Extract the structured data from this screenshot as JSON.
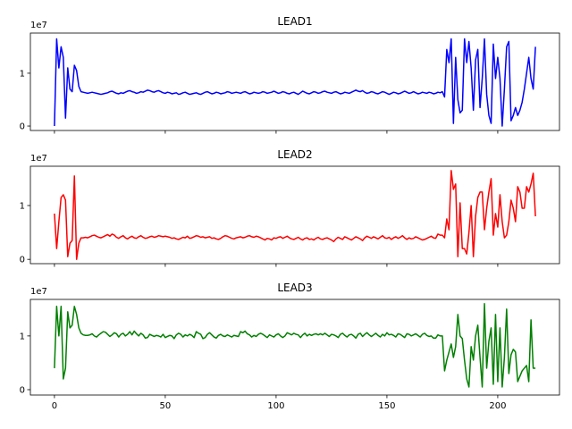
{
  "chart_data": [
    {
      "type": "line",
      "title": "LEAD1",
      "color": "#0000ff",
      "y_offset_label": "1e7",
      "xlim": [
        -10.85,
        227.85
      ],
      "ylim": [
        -0.084,
        1.76
      ],
      "yticks": [
        0,
        1
      ],
      "x": [
        0,
        1,
        2,
        3,
        4,
        5,
        6,
        7,
        8,
        9,
        10,
        11,
        12,
        13,
        14,
        15,
        16,
        17,
        18,
        19,
        20,
        21,
        22,
        23,
        24,
        25,
        26,
        27,
        28,
        29,
        30,
        31,
        32,
        33,
        34,
        35,
        36,
        37,
        38,
        39,
        40,
        41,
        42,
        43,
        44,
        45,
        46,
        47,
        48,
        49,
        50,
        51,
        52,
        53,
        54,
        55,
        56,
        57,
        58,
        59,
        60,
        61,
        62,
        63,
        64,
        65,
        66,
        67,
        68,
        69,
        70,
        71,
        72,
        73,
        74,
        75,
        76,
        77,
        78,
        79,
        80,
        81,
        82,
        83,
        84,
        85,
        86,
        87,
        88,
        89,
        90,
        91,
        92,
        93,
        94,
        95,
        96,
        97,
        98,
        99,
        100,
        101,
        102,
        103,
        104,
        105,
        106,
        107,
        108,
        109,
        110,
        111,
        112,
        113,
        114,
        115,
        116,
        117,
        118,
        119,
        120,
        121,
        122,
        123,
        124,
        125,
        126,
        127,
        128,
        129,
        130,
        131,
        132,
        133,
        134,
        135,
        136,
        137,
        138,
        139,
        140,
        141,
        142,
        143,
        144,
        145,
        146,
        147,
        148,
        149,
        150,
        151,
        152,
        153,
        154,
        155,
        156,
        157,
        158,
        159,
        160,
        161,
        162,
        163,
        164,
        165,
        166,
        167,
        168,
        169,
        170,
        171,
        172,
        173,
        174,
        175,
        176,
        177,
        178,
        179,
        180,
        181,
        182,
        183,
        184,
        185,
        186,
        187,
        188,
        189,
        190,
        191,
        192,
        193,
        194,
        195,
        196,
        197,
        198,
        199,
        200,
        201,
        202,
        203,
        204,
        205,
        206,
        207,
        208,
        209,
        210,
        211,
        212,
        213,
        214,
        215,
        216,
        217
      ],
      "values": [
        0,
        1.65,
        1.1,
        1.5,
        1.3,
        0.15,
        1.1,
        0.7,
        0.65,
        1.15,
        1.05,
        0.75,
        0.65,
        0.64,
        0.63,
        0.62,
        0.63,
        0.64,
        0.63,
        0.62,
        0.61,
        0.6,
        0.61,
        0.62,
        0.63,
        0.65,
        0.66,
        0.64,
        0.62,
        0.61,
        0.63,
        0.62,
        0.64,
        0.66,
        0.67,
        0.65,
        0.64,
        0.62,
        0.63,
        0.65,
        0.64,
        0.66,
        0.68,
        0.67,
        0.65,
        0.64,
        0.66,
        0.67,
        0.65,
        0.63,
        0.62,
        0.64,
        0.63,
        0.61,
        0.62,
        0.63,
        0.6,
        0.61,
        0.63,
        0.64,
        0.62,
        0.6,
        0.61,
        0.62,
        0.63,
        0.61,
        0.6,
        0.62,
        0.64,
        0.65,
        0.63,
        0.61,
        0.62,
        0.64,
        0.63,
        0.61,
        0.62,
        0.63,
        0.65,
        0.64,
        0.62,
        0.63,
        0.64,
        0.63,
        0.62,
        0.64,
        0.65,
        0.63,
        0.61,
        0.62,
        0.64,
        0.63,
        0.62,
        0.63,
        0.65,
        0.64,
        0.62,
        0.63,
        0.64,
        0.66,
        0.64,
        0.62,
        0.63,
        0.65,
        0.64,
        0.62,
        0.61,
        0.63,
        0.64,
        0.62,
        0.6,
        0.63,
        0.66,
        0.64,
        0.62,
        0.61,
        0.63,
        0.65,
        0.64,
        0.62,
        0.63,
        0.65,
        0.66,
        0.64,
        0.63,
        0.62,
        0.64,
        0.65,
        0.63,
        0.61,
        0.62,
        0.64,
        0.63,
        0.62,
        0.64,
        0.66,
        0.68,
        0.66,
        0.65,
        0.67,
        0.64,
        0.62,
        0.63,
        0.65,
        0.64,
        0.62,
        0.61,
        0.63,
        0.65,
        0.64,
        0.62,
        0.6,
        0.62,
        0.64,
        0.63,
        0.61,
        0.62,
        0.64,
        0.66,
        0.64,
        0.62,
        0.63,
        0.65,
        0.63,
        0.61,
        0.62,
        0.64,
        0.63,
        0.62,
        0.64,
        0.63,
        0.61,
        0.62,
        0.64,
        0.63,
        0.65,
        0.55,
        1.45,
        1.2,
        1.65,
        0.05,
        1.3,
        0.5,
        0.25,
        0.3,
        1.65,
        1.2,
        1.6,
        1.1,
        0.3,
        1.25,
        1.45,
        0.35,
        0.9,
        1.65,
        0.6,
        0.2,
        0.05,
        1.55,
        0.9,
        1.3,
        0.9,
        0.0,
        0.7,
        1.5,
        1.6,
        0.1,
        0.2,
        0.35,
        0.2,
        0.3,
        0.45,
        0.7,
        1.0,
        1.3,
        0.9,
        0.7,
        1.5
      ]
    },
    {
      "type": "line",
      "title": "LEAD2",
      "color": "#ff0000",
      "y_offset_label": "1e7",
      "xlim": [
        -10.85,
        227.85
      ],
      "ylim": [
        -0.08,
        1.73
      ],
      "yticks": [
        0,
        1
      ],
      "x": [
        0,
        1,
        2,
        3,
        4,
        5,
        6,
        7,
        8,
        9,
        10,
        11,
        12,
        13,
        14,
        15,
        16,
        17,
        18,
        19,
        20,
        21,
        22,
        23,
        24,
        25,
        26,
        27,
        28,
        29,
        30,
        31,
        32,
        33,
        34,
        35,
        36,
        37,
        38,
        39,
        40,
        41,
        42,
        43,
        44,
        45,
        46,
        47,
        48,
        49,
        50,
        51,
        52,
        53,
        54,
        55,
        56,
        57,
        58,
        59,
        60,
        61,
        62,
        63,
        64,
        65,
        66,
        67,
        68,
        69,
        70,
        71,
        72,
        73,
        74,
        75,
        76,
        77,
        78,
        79,
        80,
        81,
        82,
        83,
        84,
        85,
        86,
        87,
        88,
        89,
        90,
        91,
        92,
        93,
        94,
        95,
        96,
        97,
        98,
        99,
        100,
        101,
        102,
        103,
        104,
        105,
        106,
        107,
        108,
        109,
        110,
        111,
        112,
        113,
        114,
        115,
        116,
        117,
        118,
        119,
        120,
        121,
        122,
        123,
        124,
        125,
        126,
        127,
        128,
        129,
        130,
        131,
        132,
        133,
        134,
        135,
        136,
        137,
        138,
        139,
        140,
        141,
        142,
        143,
        144,
        145,
        146,
        147,
        148,
        149,
        150,
        151,
        152,
        153,
        154,
        155,
        156,
        157,
        158,
        159,
        160,
        161,
        162,
        163,
        164,
        165,
        166,
        167,
        168,
        169,
        170,
        171,
        172,
        173,
        174,
        175,
        176,
        177,
        178,
        179,
        180,
        181,
        182,
        183,
        184,
        185,
        186,
        187,
        188,
        189,
        190,
        191,
        192,
        193,
        194,
        195,
        196,
        197,
        198,
        199,
        200,
        201,
        202,
        203,
        204,
        205,
        206,
        207,
        208,
        209,
        210,
        211,
        212,
        213,
        214,
        215,
        216,
        217
      ],
      "values": [
        0.85,
        0.2,
        0.7,
        1.15,
        1.2,
        1.1,
        0.05,
        0.3,
        0.35,
        1.55,
        0.0,
        0.3,
        0.4,
        0.4,
        0.41,
        0.4,
        0.42,
        0.44,
        0.45,
        0.43,
        0.41,
        0.4,
        0.42,
        0.44,
        0.46,
        0.43,
        0.47,
        0.45,
        0.41,
        0.39,
        0.42,
        0.44,
        0.4,
        0.38,
        0.41,
        0.43,
        0.4,
        0.39,
        0.42,
        0.44,
        0.41,
        0.39,
        0.4,
        0.42,
        0.43,
        0.41,
        0.42,
        0.44,
        0.43,
        0.42,
        0.43,
        0.42,
        0.41,
        0.39,
        0.4,
        0.38,
        0.37,
        0.39,
        0.41,
        0.4,
        0.43,
        0.39,
        0.4,
        0.42,
        0.44,
        0.43,
        0.41,
        0.42,
        0.4,
        0.41,
        0.42,
        0.39,
        0.4,
        0.38,
        0.37,
        0.39,
        0.42,
        0.44,
        0.43,
        0.41,
        0.39,
        0.38,
        0.4,
        0.41,
        0.42,
        0.4,
        0.41,
        0.43,
        0.44,
        0.42,
        0.41,
        0.43,
        0.42,
        0.4,
        0.38,
        0.36,
        0.39,
        0.38,
        0.36,
        0.4,
        0.39,
        0.41,
        0.42,
        0.39,
        0.41,
        0.43,
        0.4,
        0.38,
        0.37,
        0.39,
        0.41,
        0.38,
        0.36,
        0.39,
        0.4,
        0.37,
        0.38,
        0.36,
        0.39,
        0.41,
        0.38,
        0.37,
        0.39,
        0.4,
        0.38,
        0.36,
        0.33,
        0.38,
        0.41,
        0.39,
        0.37,
        0.42,
        0.4,
        0.38,
        0.36,
        0.39,
        0.42,
        0.4,
        0.38,
        0.35,
        0.4,
        0.43,
        0.41,
        0.39,
        0.42,
        0.4,
        0.38,
        0.41,
        0.44,
        0.4,
        0.39,
        0.41,
        0.37,
        0.4,
        0.42,
        0.39,
        0.41,
        0.44,
        0.4,
        0.37,
        0.4,
        0.38,
        0.39,
        0.42,
        0.4,
        0.38,
        0.36,
        0.37,
        0.39,
        0.41,
        0.43,
        0.4,
        0.39,
        0.47,
        0.45,
        0.45,
        0.4,
        0.75,
        0.55,
        1.65,
        1.3,
        1.4,
        0.05,
        1.05,
        0.2,
        0.2,
        0.1,
        0.5,
        1.0,
        0.05,
        0.8,
        1.15,
        1.25,
        1.25,
        0.55,
        0.95,
        1.25,
        1.5,
        0.45,
        0.85,
        0.6,
        1.2,
        0.7,
        0.4,
        0.45,
        0.7,
        1.1,
        0.95,
        0.7,
        1.35,
        1.25,
        0.95,
        0.95,
        1.35,
        1.25,
        1.4,
        1.6,
        0.8
      ]
    },
    {
      "type": "line",
      "title": "LEAD3",
      "color": "#008000",
      "y_offset_label": "1e7",
      "xlim": [
        -10.85,
        227.85
      ],
      "ylim": [
        -0.1,
        1.68
      ],
      "yticks": [
        0,
        1
      ],
      "xticks": [
        0,
        50,
        100,
        150,
        200
      ],
      "x": [
        0,
        1,
        2,
        3,
        4,
        5,
        6,
        7,
        8,
        9,
        10,
        11,
        12,
        13,
        14,
        15,
        16,
        17,
        18,
        19,
        20,
        21,
        22,
        23,
        24,
        25,
        26,
        27,
        28,
        29,
        30,
        31,
        32,
        33,
        34,
        35,
        36,
        37,
        38,
        39,
        40,
        41,
        42,
        43,
        44,
        45,
        46,
        47,
        48,
        49,
        50,
        51,
        52,
        53,
        54,
        55,
        56,
        57,
        58,
        59,
        60,
        61,
        62,
        63,
        64,
        65,
        66,
        67,
        68,
        69,
        70,
        71,
        72,
        73,
        74,
        75,
        76,
        77,
        78,
        79,
        80,
        81,
        82,
        83,
        84,
        85,
        86,
        87,
        88,
        89,
        90,
        91,
        92,
        93,
        94,
        95,
        96,
        97,
        98,
        99,
        100,
        101,
        102,
        103,
        104,
        105,
        106,
        107,
        108,
        109,
        110,
        111,
        112,
        113,
        114,
        115,
        116,
        117,
        118,
        119,
        120,
        121,
        122,
        123,
        124,
        125,
        126,
        127,
        128,
        129,
        130,
        131,
        132,
        133,
        134,
        135,
        136,
        137,
        138,
        139,
        140,
        141,
        142,
        143,
        144,
        145,
        146,
        147,
        148,
        149,
        150,
        151,
        152,
        153,
        154,
        155,
        156,
        157,
        158,
        159,
        160,
        161,
        162,
        163,
        164,
        165,
        166,
        167,
        168,
        169,
        170,
        171,
        172,
        173,
        174,
        175,
        176,
        177,
        178,
        179,
        180,
        181,
        182,
        183,
        184,
        185,
        186,
        187,
        188,
        189,
        190,
        191,
        192,
        193,
        194,
        195,
        196,
        197,
        198,
        199,
        200,
        201,
        202,
        203,
        204,
        205,
        206,
        207,
        208,
        209,
        210,
        211,
        212,
        213,
        214,
        215,
        216,
        217
      ],
      "values": [
        0.4,
        1.55,
        1.0,
        1.55,
        0.2,
        0.4,
        1.45,
        1.15,
        1.2,
        1.55,
        1.4,
        1.15,
        1.05,
        1.02,
        1.01,
        1.01,
        1.02,
        1.04,
        1.0,
        0.98,
        1.02,
        1.05,
        1.08,
        1.07,
        1.03,
        0.99,
        1.02,
        1.06,
        1.04,
        0.98,
        1.03,
        1.05,
        1.0,
        1.03,
        1.08,
        1.02,
        1.09,
        1.04,
        1.0,
        1.05,
        1.02,
        0.96,
        0.97,
        1.03,
        1.01,
        0.99,
        1.01,
        1.0,
        0.98,
        1.03,
        0.97,
        0.99,
        1.01,
        1.0,
        0.95,
        1.02,
        1.05,
        1.03,
        0.98,
        1.02,
        1.0,
        1.03,
        1.01,
        0.97,
        1.08,
        1.05,
        1.03,
        0.95,
        0.97,
        1.03,
        1.06,
        1.02,
        0.98,
        0.96,
        1.01,
        1.03,
        1.0,
        0.99,
        1.02,
        1.0,
        0.98,
        1.01,
        1.0,
        0.99,
        1.08,
        1.06,
        1.09,
        1.04,
        1.02,
        0.98,
        1.01,
        0.99,
        1.03,
        1.05,
        1.03,
        1.0,
        0.97,
        1.02,
        1.0,
        0.98,
        1.02,
        1.04,
        1.0,
        0.97,
        1.0,
        1.06,
        1.04,
        1.02,
        1.05,
        1.03,
        1.02,
        0.97,
        1.02,
        1.05,
        1.0,
        1.03,
        1.01,
        1.03,
        1.04,
        1.02,
        1.04,
        1.02,
        1.05,
        1.02,
        0.99,
        1.03,
        1.02,
        1.0,
        0.97,
        1.03,
        1.05,
        1.01,
        0.98,
        1.02,
        1.03,
        1.0,
        0.96,
        1.03,
        1.05,
        0.99,
        1.03,
        1.06,
        1.02,
        0.99,
        1.02,
        1.05,
        1.01,
        0.98,
        1.03,
        1.0,
        1.06,
        1.02,
        1.03,
        1.01,
        0.98,
        1.04,
        1.03,
        1.0,
        0.97,
        1.04,
        1.03,
        1.0,
        1.02,
        1.04,
        1.01,
        0.98,
        1.03,
        1.05,
        1.01,
        0.99,
        1.0,
        0.96,
        0.96,
        1.02,
        1.0,
        1.0,
        0.35,
        0.55,
        0.7,
        0.85,
        0.6,
        0.8,
        1.4,
        1.0,
        0.95,
        0.55,
        0.2,
        0.05,
        0.8,
        0.55,
        1.0,
        1.2,
        0.6,
        0.05,
        1.6,
        0.4,
        0.9,
        1.15,
        0.1,
        1.4,
        0.15,
        1.15,
        0.05,
        0.6,
        1.5,
        0.3,
        0.65,
        0.75,
        0.7,
        0.15,
        0.25,
        0.35,
        0.4,
        0.45,
        0.15,
        1.3,
        0.4,
        0.4
      ]
    }
  ]
}
